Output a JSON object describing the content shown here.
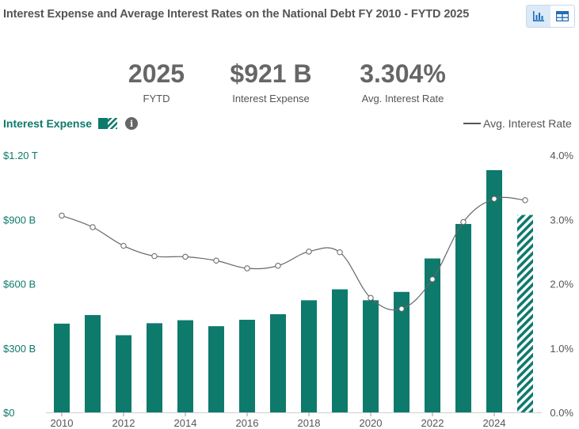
{
  "title": "Interest Expense and Average Interest Rates on the National Debt FY 2010 - FYTD 2025",
  "toggle": {
    "chart_icon": "bar-chart-icon",
    "table_icon": "table-icon"
  },
  "kpis": [
    {
      "value": "2025",
      "label": "FYTD"
    },
    {
      "value": "$921 B",
      "label": "Interest Expense"
    },
    {
      "value": "3.304%",
      "label": "Avg. Interest Rate"
    }
  ],
  "legend": {
    "bars_label": "Interest Expense",
    "info": "i",
    "line_label": "Avg. Interest Rate"
  },
  "colors": {
    "bar": "#0e7a6c",
    "line": "#666666",
    "accent": "#1f6fb8"
  },
  "chart_data": {
    "type": "bar",
    "title": "Interest Expense and Average Interest Rates on the National Debt FY 2010 - FYTD 2025",
    "categories": [
      "2010",
      "2011",
      "2012",
      "2013",
      "2014",
      "2015",
      "2016",
      "2017",
      "2018",
      "2019",
      "2020",
      "2021",
      "2022",
      "2023",
      "2024",
      "2025"
    ],
    "series": [
      {
        "name": "Interest Expense",
        "axis": "left",
        "unit": "B",
        "values": [
          414,
          454,
          360,
          416,
          430,
          402,
          432,
          458,
          523,
          574,
          523,
          562,
          718,
          879,
          1130,
          921
        ],
        "partial_last": true
      },
      {
        "name": "Avg. Interest Rate",
        "type": "line",
        "axis": "right",
        "unit": "%",
        "values": [
          3.06,
          2.88,
          2.59,
          2.43,
          2.42,
          2.36,
          2.24,
          2.28,
          2.5,
          2.49,
          1.78,
          1.61,
          2.07,
          2.96,
          3.32,
          3.3
        ]
      }
    ],
    "left_axis": {
      "ticks": [
        "$0",
        "$300 B",
        "$600 B",
        "$900 B",
        "$1.20 T"
      ],
      "range": [
        0,
        1200
      ]
    },
    "right_axis": {
      "ticks": [
        "0.0%",
        "1.0%",
        "2.0%",
        "3.0%",
        "4.0%"
      ],
      "range": [
        0,
        4
      ]
    },
    "x_ticks": [
      "2010",
      "2012",
      "2014",
      "2016",
      "2018",
      "2020",
      "2022",
      "2024"
    ]
  }
}
